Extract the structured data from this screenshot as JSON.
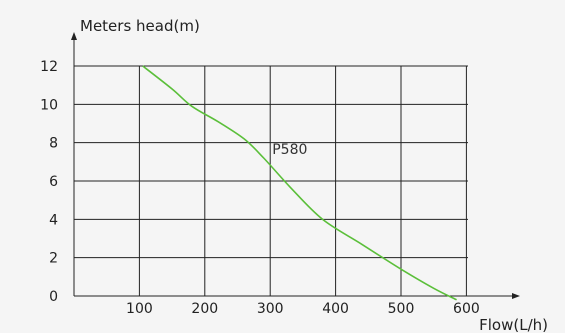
{
  "chart_data": {
    "type": "line",
    "title": "",
    "ylabel": "Meters head(m)",
    "xlabel": "Flow(L/h)",
    "x_ticks": [
      100,
      200,
      300,
      400,
      500,
      600
    ],
    "y_ticks": [
      0,
      2,
      4,
      6,
      8,
      10,
      12
    ],
    "xlim": [
      0,
      700
    ],
    "ylim": [
      0,
      12
    ],
    "grid": true,
    "series": [
      {
        "name": "P580",
        "color": "#5bbf3a",
        "x": [
          105,
          150,
          180,
          220,
          260,
          290,
          330,
          380,
          440,
          500,
          550,
          585
        ],
        "y": [
          12,
          10.8,
          9.9,
          9.1,
          8.2,
          7.2,
          5.7,
          4.0,
          2.7,
          1.4,
          0.4,
          -0.2
        ]
      }
    ],
    "colors": {
      "axis": "#222222",
      "grid": "#222222",
      "background": "#f5f5f5"
    }
  }
}
